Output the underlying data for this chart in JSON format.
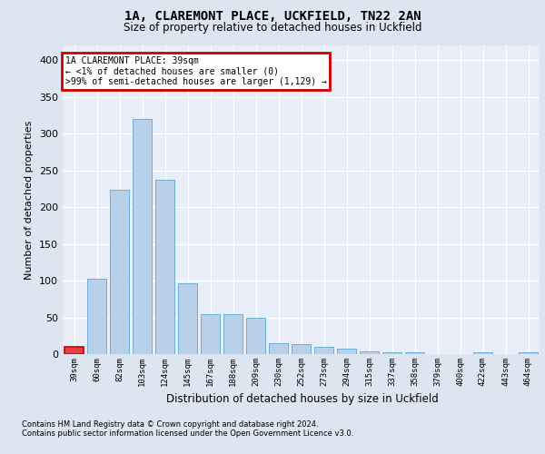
{
  "title1": "1A, CLAREMONT PLACE, UCKFIELD, TN22 2AN",
  "title2": "Size of property relative to detached houses in Uckfield",
  "xlabel": "Distribution of detached houses by size in Uckfield",
  "ylabel": "Number of detached properties",
  "categories": [
    "39sqm",
    "60sqm",
    "82sqm",
    "103sqm",
    "124sqm",
    "145sqm",
    "167sqm",
    "188sqm",
    "209sqm",
    "230sqm",
    "252sqm",
    "273sqm",
    "294sqm",
    "315sqm",
    "337sqm",
    "358sqm",
    "379sqm",
    "400sqm",
    "422sqm",
    "443sqm",
    "464sqm"
  ],
  "values": [
    10,
    102,
    224,
    320,
    237,
    96,
    54,
    54,
    50,
    15,
    14,
    10,
    7,
    4,
    3,
    3,
    0,
    0,
    2,
    0,
    2
  ],
  "bar_color": "#b8d0ea",
  "bar_edge_color": "#6baed6",
  "highlight_bar_index": 0,
  "highlight_bar_color": "#e84040",
  "annotation_line1": "1A CLAREMONT PLACE: 39sqm",
  "annotation_line2": "← <1% of detached houses are smaller (0)",
  "annotation_line3": ">99% of semi-detached houses are larger (1,129) →",
  "annotation_box_color": "#cc0000",
  "annotation_fill_color": "#ffffff",
  "ylim": [
    0,
    420
  ],
  "yticks": [
    0,
    50,
    100,
    150,
    200,
    250,
    300,
    350,
    400
  ],
  "bg_color": "#dde5f0",
  "plot_bg_color": "#e8edf7",
  "grid_color": "#ffffff",
  "footer1": "Contains HM Land Registry data © Crown copyright and database right 2024.",
  "footer2": "Contains public sector information licensed under the Open Government Licence v3.0."
}
